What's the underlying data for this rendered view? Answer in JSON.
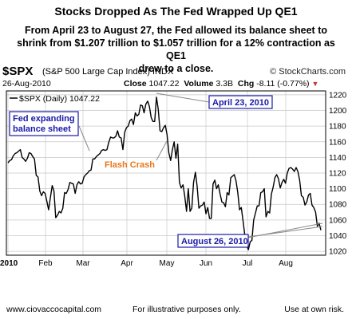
{
  "header": {
    "title": "Stocks Dropped As The Fed Wrapped Up QE1",
    "subtitle_lines": [
      "From April 23  to August 27, the Fed allowed its balance sheet to",
      "shrink from $1.207 trillion to $1.057 trillion for a 12% contraction as QE1",
      "drew to a close."
    ]
  },
  "chart_header": {
    "symbol": "$SPX",
    "name": "(S&P 500 Large Cap Index)",
    "exchange": "INDX",
    "brand": "© StockCharts.com",
    "date": "26-Aug-2010",
    "close_label": "Close",
    "close_value": "1047.22",
    "volume_label": "Volume",
    "volume_value": "3.3B",
    "chg_label": "Chg",
    "chg_value": "-8.11 (-0.77%)",
    "chg_arrow": "▼",
    "legend": "$SPX (Daily) 1047.22"
  },
  "chart_data": {
    "type": "line",
    "x_ticks": [
      "2010",
      "Feb",
      "Mar",
      "Apr",
      "May",
      "Jun",
      "Jul",
      "Aug"
    ],
    "ylim": [
      1015,
      1225
    ],
    "y_ticks": [
      1020,
      1040,
      1060,
      1080,
      1100,
      1120,
      1140,
      1160,
      1180,
      1200,
      1220
    ],
    "grid": true,
    "series": [
      {
        "name": "$SPX (Daily)",
        "values": [
          1133,
          1136,
          1137,
          1142,
          1145,
          1146,
          1148,
          1150,
          1140,
          1138,
          1135,
          1139,
          1146,
          1145,
          1141,
          1138,
          1117,
          1115,
          1097,
          1091,
          1096,
          1094,
          1084,
          1073,
          1089,
          1104,
          1097,
          1063,
          1066,
          1071,
          1069,
          1075,
          1095,
          1094,
          1099,
          1108,
          1107,
          1106,
          1094,
          1105,
          1109,
          1106,
          1107,
          1115,
          1118,
          1120,
          1123,
          1124,
          1138,
          1138,
          1141,
          1143,
          1145,
          1149,
          1150,
          1149,
          1150,
          1159,
          1166,
          1165,
          1165,
          1167,
          1174,
          1166,
          1165,
          1150,
          1172,
          1178,
          1180,
          1187,
          1189,
          1182,
          1197,
          1193,
          1195,
          1207,
          1206,
          1197,
          1208,
          1212,
          1205,
          1191,
          1186,
          1186,
          1217,
          1202,
          1174,
          1173,
          1178,
          1181,
          1169,
          1146,
          1136,
          1150,
          1160,
          1139,
          1157,
          1108,
          1101,
          1105,
          1090,
          1071,
          1100,
          1071,
          1075,
          1108,
          1121,
          1103,
          1075,
          1078,
          1079,
          1083,
          1068,
          1076,
          1062,
          1062,
          1106,
          1111,
          1100,
          1105,
          1093,
          1083,
          1082,
          1077,
          1095,
          1092,
          1114,
          1116,
          1118,
          1110,
          1095,
          1073,
          1076,
          1058,
          1040,
          1028,
          1022,
          1032,
          1034,
          1060,
          1069,
          1078,
          1078,
          1095,
          1096,
          1100,
          1064,
          1071,
          1069,
          1093,
          1102,
          1114,
          1118,
          1113,
          1101,
          1108,
          1112,
          1107,
          1120,
          1126,
          1127,
          1125,
          1122,
          1127,
          1122,
          1111,
          1091,
          1089,
          1079,
          1083,
          1092,
          1094,
          1079,
          1076,
          1070,
          1052,
          1056,
          1047
        ]
      }
    ],
    "annotations": [
      {
        "text": "Fed expanding balance sheet",
        "color": "#1a1aa8"
      },
      {
        "text": "Flash Crash",
        "color": "#e8771b"
      },
      {
        "text": "April 23, 2010",
        "color": "#1a1aa8"
      },
      {
        "text": "August 26, 2010",
        "color": "#1a1aa8"
      }
    ],
    "colors": {
      "line": "#000000",
      "grid": "#c8c8c8",
      "annotation": "#1a1aa8",
      "flash_crash": "#e8771b"
    }
  },
  "footer": {
    "left": "www.ciovaccocapital.com",
    "middle": "For illustrative purposes only.",
    "right": "Use at own risk."
  }
}
